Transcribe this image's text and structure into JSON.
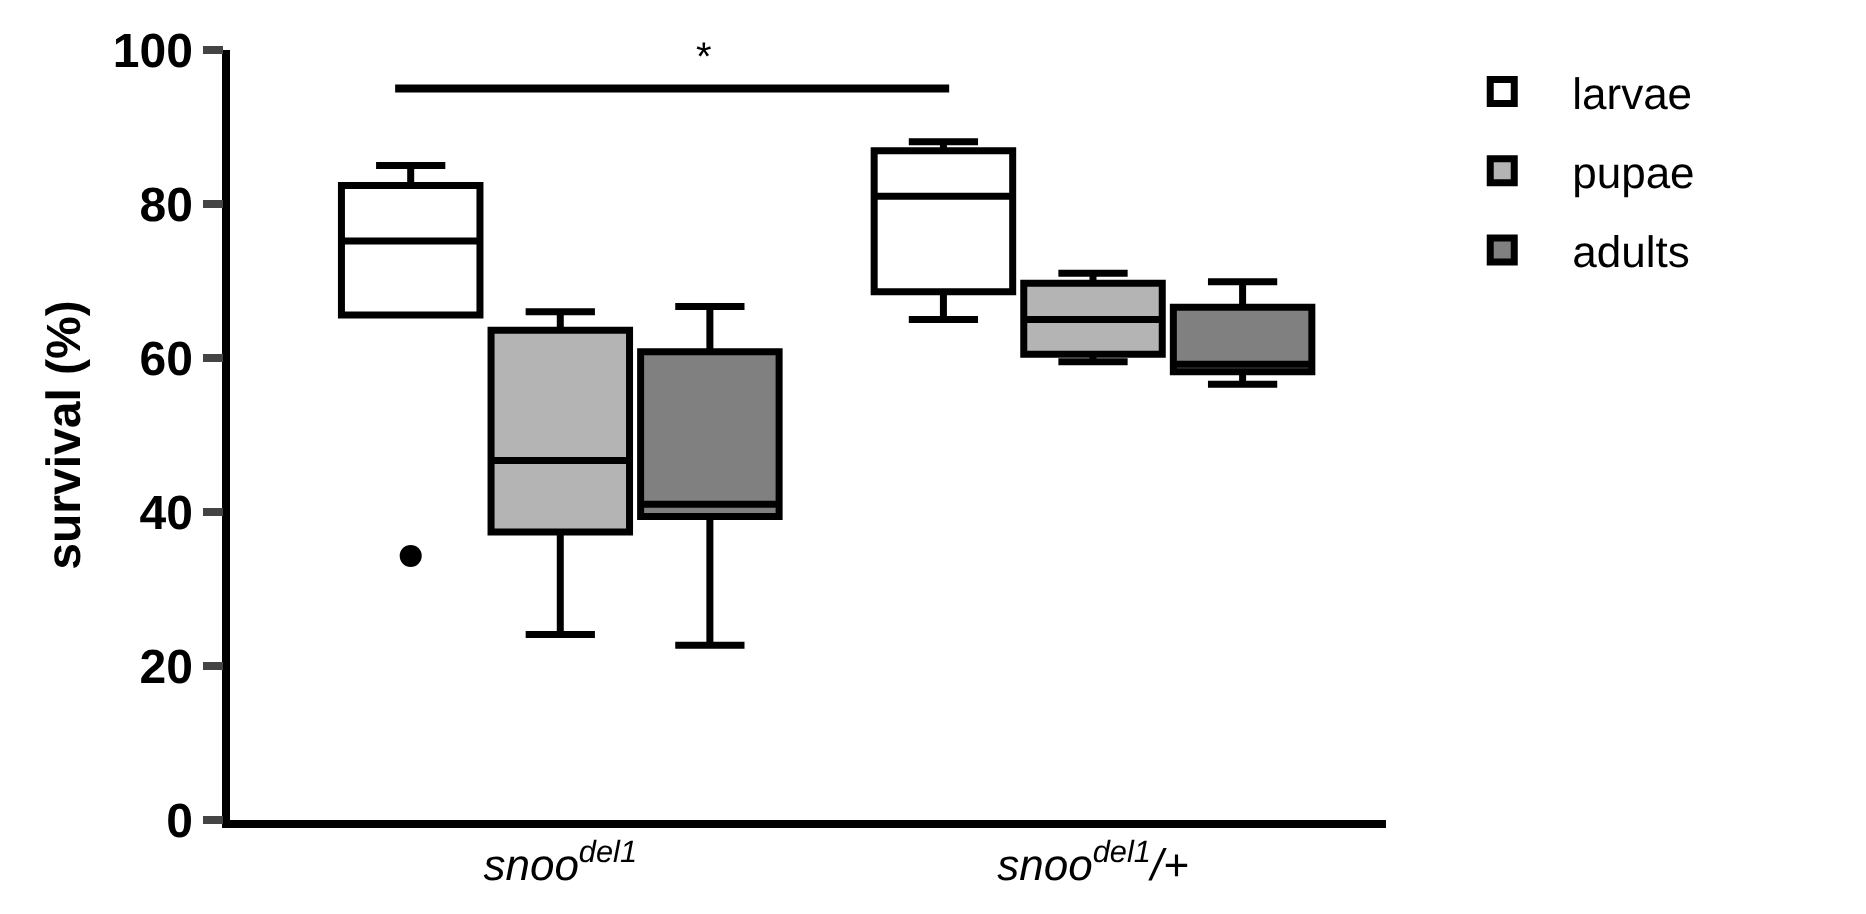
{
  "chart_data": {
    "type": "box",
    "ylabel": "survival (%)",
    "categories": [
      "snoo$^{del1}$",
      "snoo$^{del1}$/+"
    ],
    "ylim": [
      0,
      100
    ],
    "yticks": [
      0,
      20,
      40,
      60,
      80,
      100
    ],
    "grid": false,
    "legend": "top right",
    "annotations": [
      "*"
    ],
    "series": [
      {
        "name": "larvae",
        "color": "#ffffff",
        "boxes": [
          {
            "low": 65.6,
            "q1": 65.6,
            "median": 75.2,
            "q3": 82.4,
            "high": 85.0,
            "outliers": [
              34.3
            ]
          },
          {
            "low": 65.0,
            "q1": 68.6,
            "median": 81.0,
            "q3": 86.9,
            "high": 88.1
          }
        ]
      },
      {
        "name": "pupae",
        "color": "#b4b4b4",
        "boxes": [
          {
            "low": 24.1,
            "q1": 37.4,
            "median": 46.7,
            "q3": 63.6,
            "high": 66.0
          },
          {
            "low": 59.5,
            "q1": 60.5,
            "median": 65.0,
            "q3": 69.7,
            "high": 71.0
          }
        ]
      },
      {
        "name": "adults",
        "color": "#808080",
        "boxes": [
          {
            "low": 22.7,
            "q1": 39.4,
            "median": 41.0,
            "q3": 60.8,
            "high": 66.7
          },
          {
            "low": 56.6,
            "q1": 58.2,
            "median": 59.2,
            "q3": 66.6,
            "high": 69.9
          }
        ]
      }
    ]
  }
}
